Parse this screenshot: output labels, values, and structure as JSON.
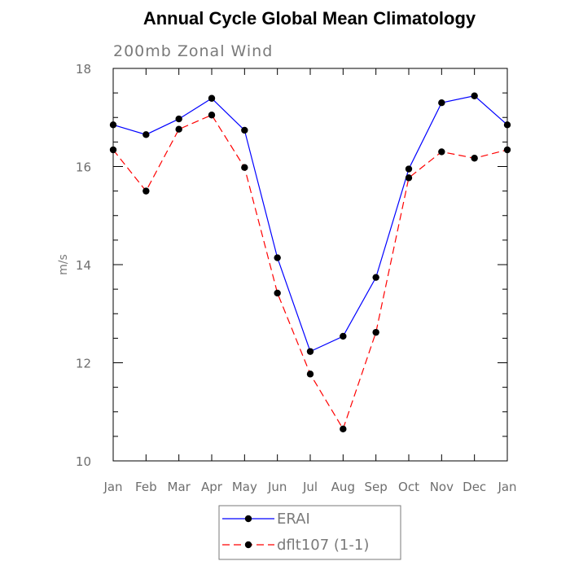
{
  "chart_data": {
    "type": "line",
    "title": "Annual Cycle Global Mean Climatology",
    "subtitle": "200mb Zonal Wind",
    "xlabel": "",
    "ylabel": "m/s",
    "categories": [
      "Jan",
      "Feb",
      "Mar",
      "Apr",
      "May",
      "Jun",
      "Jul",
      "Aug",
      "Sep",
      "Oct",
      "Nov",
      "Dec",
      "Jan"
    ],
    "ylim": [
      10,
      18
    ],
    "yticks": [
      10,
      12,
      14,
      16,
      18
    ],
    "grid": false,
    "legend_position": "bottom-center",
    "series": [
      {
        "name": "ERAI",
        "color": "#0000ff",
        "line_style": "solid",
        "marker": "filled-circle",
        "values": [
          16.85,
          16.65,
          16.97,
          17.39,
          16.74,
          14.14,
          12.23,
          12.54,
          13.74,
          15.95,
          17.3,
          17.44,
          16.85
        ]
      },
      {
        "name": "dflt107 (1-1)",
        "color": "#ff0000",
        "line_style": "dashed",
        "marker": "filled-circle",
        "values": [
          16.34,
          15.5,
          16.76,
          17.05,
          15.98,
          13.42,
          11.77,
          10.65,
          12.62,
          15.77,
          16.3,
          16.17,
          16.34
        ]
      }
    ]
  }
}
